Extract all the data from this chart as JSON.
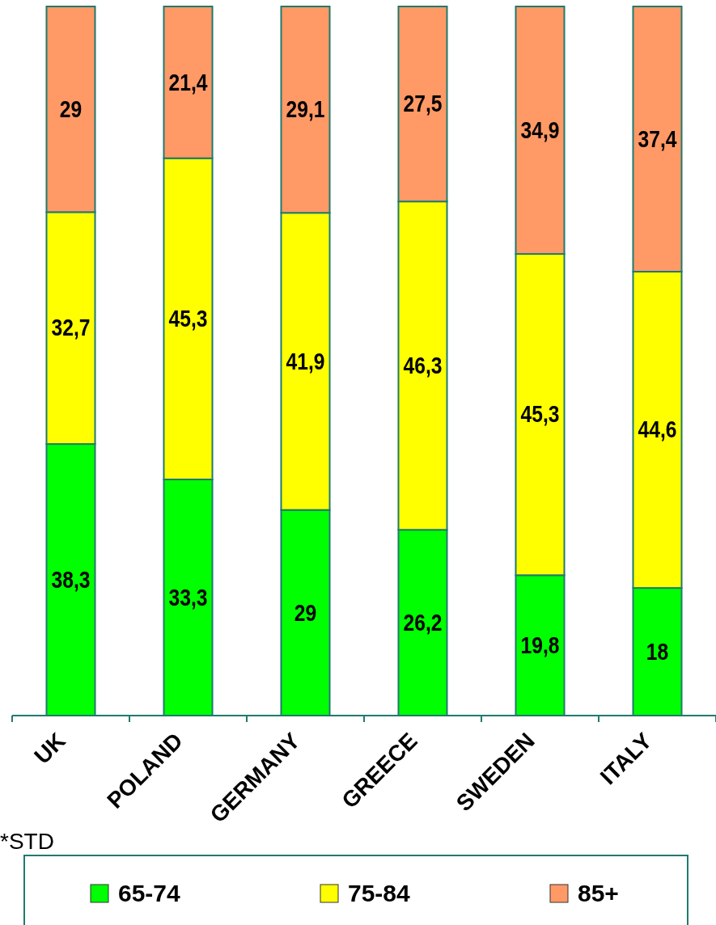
{
  "chart_data": {
    "type": "bar",
    "stacked": true,
    "categories": [
      "UK",
      "POLAND",
      "GERMANY",
      "GREECE",
      "SWEDEN",
      "ITALY"
    ],
    "series": [
      {
        "name": "65-74",
        "color": "#00ff00",
        "values": [
          38.3,
          33.3,
          29,
          26.2,
          19.8,
          18
        ],
        "value_labels": [
          "38,3",
          "33,3",
          "29",
          "26,2",
          "19,8",
          "18"
        ]
      },
      {
        "name": "75-84",
        "color": "#ffff00",
        "values": [
          32.7,
          45.3,
          41.9,
          46.3,
          45.3,
          44.6
        ],
        "value_labels": [
          "32,7",
          "45,3",
          "41,9",
          "46,3",
          "45,3",
          "44,6"
        ]
      },
      {
        "name": "85+",
        "color": "#ff9966",
        "values": [
          29,
          21.4,
          29.1,
          27.5,
          34.9,
          37.4
        ],
        "value_labels": [
          "29",
          "21,4",
          "29,1",
          "27,5",
          "34,9",
          "37,4"
        ]
      }
    ],
    "ylim": [
      0,
      100
    ],
    "tick_labels": "x",
    "legend": "bottom",
    "annotations": [
      "*STD"
    ]
  }
}
